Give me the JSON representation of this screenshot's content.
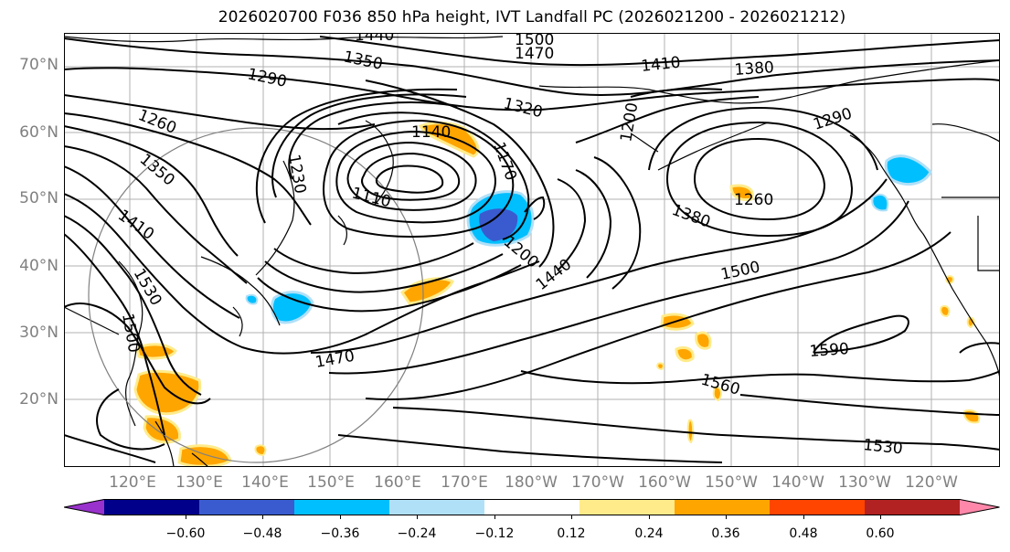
{
  "title": "2026020700 F036 850 hPa height, IVT Landfall PC (2026021200 - 2026021212)",
  "latitude_labels": [
    "70°N",
    "60°N",
    "50°N",
    "40°N",
    "30°N",
    "20°N"
  ],
  "longitude_labels": [
    "120°E",
    "130°E",
    "140°E",
    "150°E",
    "160°E",
    "170°E",
    "180°W",
    "170°W",
    "160°W",
    "150°W",
    "140°W",
    "130°W",
    "120°W"
  ],
  "contour_labels": {
    "c1500": "1500",
    "c1470t": "1470",
    "c1440t": "1440",
    "c1350a": "1350",
    "c1410a": "1410",
    "c1380a": "1380",
    "c1290a": "1290",
    "c1320": "1320",
    "c1260a": "1260",
    "c1350b": "1350",
    "c1410b": "1410",
    "c1530a": "1530",
    "c1500b": "1500",
    "c1230": "1230",
    "c1140": "1140",
    "c1170": "1170",
    "c1110": "1110",
    "c1200a": "1200",
    "c1200b": "1200",
    "c1290b": "1290",
    "c1260b": "1260",
    "c1380b": "1380",
    "c1500c": "1500",
    "c1440b": "1440",
    "c1470b": "1470",
    "c1590": "1590",
    "c1560": "1560",
    "c1530b": "1530"
  },
  "colorbar": {
    "colors": [
      "#9932cc",
      "#00008b",
      "#3a5bcf",
      "#00bfff",
      "#b0e0f8",
      "#ffffff",
      "#ffeb8a",
      "#ffa500",
      "#ff4500",
      "#b22222",
      "#ff88aa"
    ],
    "tick_labels": [
      "−0.60",
      "−0.48",
      "−0.36",
      "−0.24",
      "−0.12",
      "0.12",
      "0.24",
      "0.36",
      "0.48",
      "0.60"
    ]
  }
}
